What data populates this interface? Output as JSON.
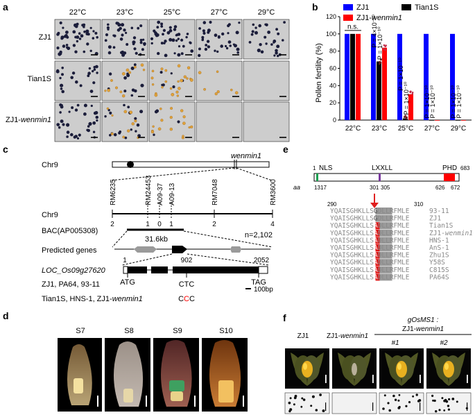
{
  "panels": {
    "a": "a",
    "b": "b",
    "c": "c",
    "d": "d",
    "e": "e",
    "f": "f"
  },
  "panel_a": {
    "temps": [
      "22°C",
      "23°C",
      "25°C",
      "27°C",
      "29°C"
    ],
    "rows": [
      "ZJ1",
      "Tian1S",
      "ZJ1-wenmin1"
    ],
    "colors": {
      "stained": "#1b1d3a",
      "sterile": "#e0a23a",
      "bg": "#cdcdcd"
    }
  },
  "chart_data": {
    "type": "bar",
    "categories": [
      "22°C",
      "23°C",
      "25°C",
      "27°C",
      "29°C"
    ],
    "series": [
      {
        "name": "ZJ1",
        "color": "#0000ff",
        "values": [
          100,
          100,
          100,
          100,
          100
        ]
      },
      {
        "name": "Tian1S",
        "color": "#000000",
        "values": [
          100,
          68,
          2,
          0,
          0
        ]
      },
      {
        "name": "ZJ1-wenmin1",
        "color": "#ff0000",
        "values": [
          100,
          84,
          30,
          0,
          0
        ]
      }
    ],
    "ylabel": "Pollen fertility (%)",
    "ylim": [
      0,
      120
    ],
    "yticks": [
      "0",
      "20",
      "40",
      "60",
      "80",
      "100",
      "120"
    ],
    "annotations": [
      {
        "category": "22°C",
        "text": "n.s."
      },
      {
        "category": "23°C",
        "lines": [
          "P = 4×10⁻¹⁰",
          "P = 1×10⁻¹⁰"
        ]
      },
      {
        "category": "25°C",
        "lines": [
          "P = 1×10⁻¹⁰",
          "P = 1×10⁻¹⁰"
        ]
      },
      {
        "category": "27°C",
        "lines": [
          "P = 1×10⁻¹⁰",
          "P = 1×10⁻¹⁰"
        ]
      },
      {
        "category": "29°C",
        "lines": [
          "P = 1×10⁻¹⁰",
          "P = 1×10⁻¹⁰"
        ]
      }
    ]
  },
  "panel_c": {
    "chr_label": "Chr9",
    "gene_name": "wenmin1",
    "markers": [
      "RM6235",
      "RM24453",
      "A09-37",
      "A09-13",
      "RM7048",
      "RM3600"
    ],
    "recombinants": [
      "2",
      "1",
      "0",
      "1",
      "2",
      "4"
    ],
    "bac": "BAC(AP005308)",
    "bac_size": "31.6kb",
    "n": "n=2,102",
    "predicted": "Predicted genes",
    "locus": "LOC_Os09g27620",
    "positions": [
      "1",
      "902",
      "2052"
    ],
    "codons": [
      "ATG",
      "CTC",
      "TAG"
    ],
    "scale": "100bp",
    "wt_lines": "ZJ1, PA64, 93-11",
    "mut_lines": "Tian1S, HNS-1, ZJ1-wenmin1",
    "mut_codon": [
      "C",
      "C",
      "C"
    ],
    "mut_color": "#ff0000"
  },
  "panel_d": {
    "stages": [
      "S7",
      "S8",
      "S9",
      "S10"
    ]
  },
  "panel_e": {
    "domains": [
      "NLS",
      "LXXLL",
      "PHD"
    ],
    "length": "683",
    "aa_label": "aa",
    "start": "1",
    "pos": [
      "13",
      "17",
      "301",
      "305",
      "626",
      "672"
    ],
    "range_start": "290",
    "range_end": "310",
    "sequences": [
      {
        "pre": "YQAISGHKLLS",
        "mid": "G",
        "post": "DLLRFMLE",
        "mutant": false,
        "name": "93-11"
      },
      {
        "pre": "YQAISGHKLLS",
        "mid": "G",
        "post": "DLLRFMLE",
        "mutant": false,
        "name": "ZJ1"
      },
      {
        "pre": "YQAISGHKLLS",
        "mid": "A",
        "post": "DLLRFMLE",
        "mutant": true,
        "name": "Tian1S"
      },
      {
        "pre": "YQAISGHKLLS",
        "mid": "A",
        "post": "DLLRFMLE",
        "mutant": true,
        "name": "ZJ1-wenmin1"
      },
      {
        "pre": "YQAISGHKLLS",
        "mid": "A",
        "post": "DLLRFMLE",
        "mutant": true,
        "name": "HNS-1"
      },
      {
        "pre": "YQAISGHKLLS",
        "mid": "A",
        "post": "DLLRFMLE",
        "mutant": true,
        "name": "AnS-1"
      },
      {
        "pre": "YQAISGHKLLS",
        "mid": "A",
        "post": "DLLRFMLE",
        "mutant": true,
        "name": "Zhu1S"
      },
      {
        "pre": "YQAISGHKLLS",
        "mid": "A",
        "post": "DLLRFMLE",
        "mutant": true,
        "name": "Y58S"
      },
      {
        "pre": "YQAISGHKLLS",
        "mid": "A",
        "post": "DLLRFMLE",
        "mutant": true,
        "name": "C815S"
      },
      {
        "pre": "YQAISGHKLLS",
        "mid": "A",
        "post": "DLLRFMLE",
        "mutant": true,
        "name": "PA64S"
      }
    ]
  },
  "panel_f": {
    "cols": [
      "ZJ1",
      "ZJ1-wenmin1",
      "#1",
      "#2"
    ],
    "construct": "gOsMS1 :",
    "construct2": "ZJ1-wenmin1"
  }
}
